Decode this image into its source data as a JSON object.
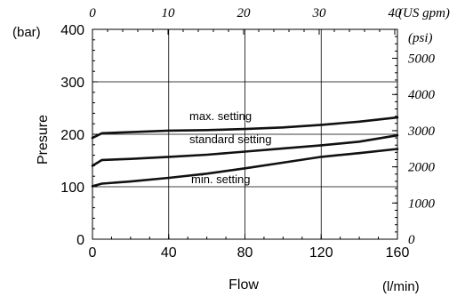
{
  "chart_data": {
    "type": "line",
    "x_label": "Flow",
    "x_unit": "(l/min)",
    "y_label": "Presure",
    "y_unit": "(bar)",
    "top_axis_unit": "(US gpm)",
    "right_axis_unit": "(psi)",
    "xlim": [
      0,
      160
    ],
    "ylim": [
      0,
      400
    ],
    "x_ticks": [
      0,
      40,
      80,
      120,
      160
    ],
    "y_ticks": [
      0,
      100,
      200,
      300,
      400
    ],
    "top_ticks": [
      0,
      10,
      20,
      30,
      40
    ],
    "right_ticks": [
      0,
      1000,
      2000,
      3000,
      4000,
      5000
    ],
    "grid": true,
    "series": [
      {
        "name": "max. setting",
        "x": [
          0,
          5,
          20,
          40,
          60,
          80,
          100,
          120,
          140,
          160
        ],
        "y": [
          193,
          202,
          204,
          207,
          208,
          210,
          213,
          218,
          224,
          232
        ]
      },
      {
        "name": "standard setting",
        "x": [
          0,
          5,
          20,
          40,
          60,
          80,
          100,
          120,
          140,
          160
        ],
        "y": [
          140,
          151,
          153,
          157,
          161,
          167,
          173,
          179,
          186,
          198
        ]
      },
      {
        "name": "min. setting",
        "x": [
          0,
          5,
          20,
          40,
          60,
          80,
          100,
          120,
          140,
          160
        ],
        "y": [
          101,
          106,
          110,
          117,
          125,
          135,
          146,
          157,
          164,
          172
        ]
      }
    ]
  }
}
